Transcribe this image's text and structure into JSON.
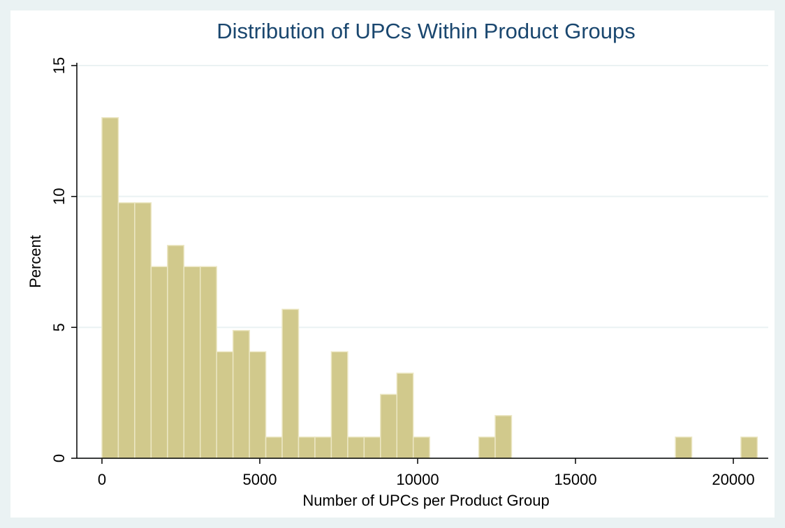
{
  "chart_data": {
    "type": "histogram",
    "title": "Distribution of UPCs Within Product Groups",
    "xlabel": "Number of UPCs per Product Group",
    "ylabel": "Percent",
    "bins": [
      0,
      519,
      1038,
      1557,
      2076,
      2595,
      3114,
      3633,
      4152,
      4671,
      5190,
      5709,
      6228,
      6747,
      7266,
      7785,
      8304,
      8823,
      9342,
      9861,
      10380,
      10899,
      11418,
      11937,
      12456,
      12975,
      13494,
      14013,
      14532,
      15051,
      15570,
      16089,
      16608,
      17127,
      17646,
      18165,
      18684,
      19203,
      19722,
      20241,
      20760
    ],
    "values": [
      13.01,
      9.76,
      9.76,
      7.32,
      8.13,
      7.32,
      7.32,
      4.07,
      4.88,
      4.07,
      0.81,
      5.69,
      0.81,
      0.81,
      4.07,
      0.81,
      0.81,
      2.44,
      3.25,
      0.81,
      0,
      0,
      0,
      0.81,
      1.63,
      0,
      0,
      0,
      0,
      0,
      0,
      0,
      0,
      0,
      0,
      0.81,
      0,
      0,
      0,
      0.81
    ],
    "color": "#d1c98c",
    "xlim": [
      -796,
      21106
    ],
    "ylim": [
      0,
      15
    ],
    "xticks": [
      0,
      5000,
      10000,
      15000,
      20000
    ],
    "yticks": [
      0,
      5,
      10,
      15
    ],
    "grid": true
  }
}
